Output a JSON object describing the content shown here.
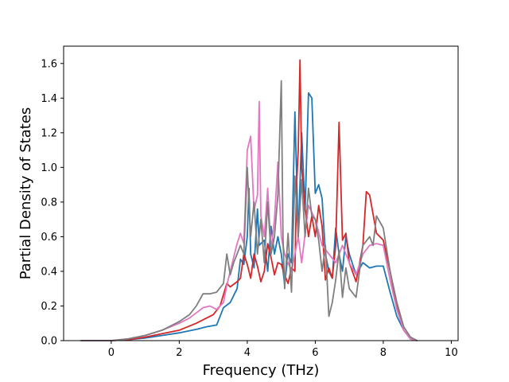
{
  "chart_data": {
    "type": "line",
    "title": "",
    "xlabel": "Frequency (THz)",
    "ylabel": "Partial Density of States",
    "xlim": [
      -1.4,
      10.2
    ],
    "ylim": [
      0.0,
      1.7
    ],
    "xticks": [
      0,
      2,
      4,
      6,
      8,
      10
    ],
    "yticks": [
      0.0,
      0.2,
      0.4,
      0.6,
      0.8,
      1.0,
      1.2,
      1.4,
      1.6
    ],
    "grid": false,
    "legend": "none",
    "series": [
      {
        "color": "#1f77b4",
        "points": [
          [
            -0.9,
            0
          ],
          [
            0,
            0
          ],
          [
            0.5,
            0.005
          ],
          [
            1,
            0.015
          ],
          [
            1.5,
            0.03
          ],
          [
            2,
            0.045
          ],
          [
            2.5,
            0.065
          ],
          [
            2.8,
            0.08
          ],
          [
            3.1,
            0.09
          ],
          [
            3.3,
            0.19
          ],
          [
            3.5,
            0.22
          ],
          [
            3.7,
            0.3
          ],
          [
            3.8,
            0.47
          ],
          [
            3.9,
            0.44
          ],
          [
            4.0,
            0.6
          ],
          [
            4.05,
            0.88
          ],
          [
            4.1,
            0.5
          ],
          [
            4.2,
            0.42
          ],
          [
            4.3,
            0.76
          ],
          [
            4.35,
            0.55
          ],
          [
            4.5,
            0.58
          ],
          [
            4.6,
            0.4
          ],
          [
            4.7,
            0.66
          ],
          [
            4.8,
            0.5
          ],
          [
            4.9,
            0.6
          ],
          [
            5.0,
            0.5
          ],
          [
            5.1,
            0.32
          ],
          [
            5.2,
            0.5
          ],
          [
            5.3,
            0.45
          ],
          [
            5.4,
            1.32
          ],
          [
            5.5,
            0.6
          ],
          [
            5.6,
            1.2
          ],
          [
            5.7,
            0.75
          ],
          [
            5.8,
            1.43
          ],
          [
            5.9,
            1.4
          ],
          [
            6.0,
            0.85
          ],
          [
            6.1,
            0.9
          ],
          [
            6.2,
            0.82
          ],
          [
            6.3,
            0.5
          ],
          [
            6.4,
            0.4
          ],
          [
            6.5,
            0.36
          ],
          [
            6.6,
            0.65
          ],
          [
            6.7,
            0.5
          ],
          [
            6.8,
            0.4
          ],
          [
            6.9,
            0.6
          ],
          [
            7.0,
            0.5
          ],
          [
            7.2,
            0.38
          ],
          [
            7.4,
            0.45
          ],
          [
            7.6,
            0.42
          ],
          [
            7.8,
            0.43
          ],
          [
            8.0,
            0.43
          ],
          [
            8.2,
            0.28
          ],
          [
            8.4,
            0.14
          ],
          [
            8.6,
            0.06
          ],
          [
            8.8,
            0.01
          ],
          [
            9.0,
            0
          ]
        ]
      },
      {
        "color": "#d62728",
        "points": [
          [
            -0.9,
            0
          ],
          [
            0,
            0
          ],
          [
            0.5,
            0.005
          ],
          [
            1,
            0.02
          ],
          [
            1.5,
            0.04
          ],
          [
            2,
            0.06
          ],
          [
            2.5,
            0.1
          ],
          [
            2.8,
            0.13
          ],
          [
            3.0,
            0.15
          ],
          [
            3.2,
            0.2
          ],
          [
            3.4,
            0.33
          ],
          [
            3.5,
            0.31
          ],
          [
            3.7,
            0.34
          ],
          [
            3.8,
            0.36
          ],
          [
            3.9,
            0.5
          ],
          [
            4.0,
            0.44
          ],
          [
            4.1,
            0.36
          ],
          [
            4.2,
            0.5
          ],
          [
            4.3,
            0.43
          ],
          [
            4.4,
            0.34
          ],
          [
            4.5,
            0.4
          ],
          [
            4.6,
            0.56
          ],
          [
            4.7,
            0.48
          ],
          [
            4.8,
            0.38
          ],
          [
            4.9,
            0.45
          ],
          [
            5.0,
            0.44
          ],
          [
            5.1,
            0.38
          ],
          [
            5.2,
            0.33
          ],
          [
            5.3,
            0.42
          ],
          [
            5.4,
            0.4
          ],
          [
            5.45,
            0.9
          ],
          [
            5.5,
            1.1
          ],
          [
            5.55,
            1.62
          ],
          [
            5.6,
            1.0
          ],
          [
            5.7,
            0.76
          ],
          [
            5.8,
            0.6
          ],
          [
            5.9,
            0.72
          ],
          [
            6.0,
            0.6
          ],
          [
            6.1,
            0.78
          ],
          [
            6.2,
            0.66
          ],
          [
            6.3,
            0.35
          ],
          [
            6.4,
            0.42
          ],
          [
            6.5,
            0.36
          ],
          [
            6.6,
            0.55
          ],
          [
            6.7,
            1.26
          ],
          [
            6.8,
            0.58
          ],
          [
            6.9,
            0.62
          ],
          [
            7.0,
            0.45
          ],
          [
            7.2,
            0.34
          ],
          [
            7.4,
            0.55
          ],
          [
            7.5,
            0.86
          ],
          [
            7.6,
            0.84
          ],
          [
            7.8,
            0.62
          ],
          [
            8.0,
            0.58
          ],
          [
            8.2,
            0.4
          ],
          [
            8.4,
            0.2
          ],
          [
            8.6,
            0.06
          ],
          [
            8.8,
            0.01
          ],
          [
            9.0,
            0
          ]
        ]
      },
      {
        "color": "#e377c2",
        "points": [
          [
            -0.9,
            0
          ],
          [
            0,
            0
          ],
          [
            0.5,
            0.01
          ],
          [
            1,
            0.03
          ],
          [
            1.5,
            0.06
          ],
          [
            2,
            0.1
          ],
          [
            2.3,
            0.13
          ],
          [
            2.5,
            0.16
          ],
          [
            2.7,
            0.19
          ],
          [
            2.9,
            0.2
          ],
          [
            3.1,
            0.18
          ],
          [
            3.3,
            0.22
          ],
          [
            3.4,
            0.32
          ],
          [
            3.5,
            0.4
          ],
          [
            3.6,
            0.48
          ],
          [
            3.7,
            0.56
          ],
          [
            3.8,
            0.62
          ],
          [
            3.9,
            0.56
          ],
          [
            4.0,
            1.1
          ],
          [
            4.1,
            1.18
          ],
          [
            4.2,
            0.75
          ],
          [
            4.3,
            0.84
          ],
          [
            4.35,
            1.38
          ],
          [
            4.4,
            0.72
          ],
          [
            4.5,
            0.6
          ],
          [
            4.6,
            0.88
          ],
          [
            4.7,
            0.52
          ],
          [
            4.8,
            0.7
          ],
          [
            4.9,
            1.03
          ],
          [
            5.0,
            0.6
          ],
          [
            5.1,
            0.5
          ],
          [
            5.2,
            0.45
          ],
          [
            5.3,
            0.4
          ],
          [
            5.5,
            0.6
          ],
          [
            5.6,
            0.45
          ],
          [
            5.8,
            0.78
          ],
          [
            6.0,
            0.7
          ],
          [
            6.2,
            0.55
          ],
          [
            6.4,
            0.5
          ],
          [
            6.6,
            0.45
          ],
          [
            6.8,
            0.55
          ],
          [
            7.0,
            0.45
          ],
          [
            7.2,
            0.38
          ],
          [
            7.4,
            0.5
          ],
          [
            7.6,
            0.55
          ],
          [
            7.8,
            0.56
          ],
          [
            8.0,
            0.55
          ],
          [
            8.2,
            0.35
          ],
          [
            8.4,
            0.18
          ],
          [
            8.6,
            0.06
          ],
          [
            8.8,
            0.01
          ],
          [
            9.0,
            0
          ]
        ]
      },
      {
        "color": "#7f7f7f",
        "points": [
          [
            -0.9,
            0
          ],
          [
            0,
            0
          ],
          [
            0.5,
            0.01
          ],
          [
            1,
            0.03
          ],
          [
            1.5,
            0.06
          ],
          [
            2,
            0.11
          ],
          [
            2.3,
            0.15
          ],
          [
            2.5,
            0.2
          ],
          [
            2.7,
            0.27
          ],
          [
            2.9,
            0.27
          ],
          [
            3.1,
            0.28
          ],
          [
            3.3,
            0.33
          ],
          [
            3.4,
            0.5
          ],
          [
            3.5,
            0.38
          ],
          [
            3.6,
            0.45
          ],
          [
            3.7,
            0.5
          ],
          [
            3.8,
            0.55
          ],
          [
            3.9,
            0.5
          ],
          [
            4.0,
            1.0
          ],
          [
            4.05,
            0.8
          ],
          [
            4.1,
            0.6
          ],
          [
            4.2,
            0.8
          ],
          [
            4.3,
            0.5
          ],
          [
            4.4,
            0.7
          ],
          [
            4.5,
            0.45
          ],
          [
            4.6,
            0.8
          ],
          [
            4.7,
            0.5
          ],
          [
            4.8,
            0.6
          ],
          [
            4.9,
            0.84
          ],
          [
            5.0,
            1.5
          ],
          [
            5.05,
            0.6
          ],
          [
            5.1,
            0.3
          ],
          [
            5.2,
            0.62
          ],
          [
            5.3,
            0.28
          ],
          [
            5.4,
            0.95
          ],
          [
            5.5,
            0.6
          ],
          [
            5.6,
            0.93
          ],
          [
            5.7,
            0.6
          ],
          [
            5.8,
            0.88
          ],
          [
            5.9,
            0.72
          ],
          [
            6.0,
            0.7
          ],
          [
            6.1,
            0.58
          ],
          [
            6.2,
            0.4
          ],
          [
            6.3,
            0.55
          ],
          [
            6.4,
            0.14
          ],
          [
            6.5,
            0.22
          ],
          [
            6.6,
            0.35
          ],
          [
            6.7,
            0.52
          ],
          [
            6.8,
            0.25
          ],
          [
            6.9,
            0.42
          ],
          [
            7.0,
            0.3
          ],
          [
            7.2,
            0.25
          ],
          [
            7.4,
            0.55
          ],
          [
            7.6,
            0.6
          ],
          [
            7.7,
            0.55
          ],
          [
            7.8,
            0.72
          ],
          [
            8.0,
            0.65
          ],
          [
            8.2,
            0.4
          ],
          [
            8.4,
            0.22
          ],
          [
            8.6,
            0.08
          ],
          [
            8.8,
            0.02
          ],
          [
            9.0,
            0
          ]
        ]
      }
    ]
  }
}
